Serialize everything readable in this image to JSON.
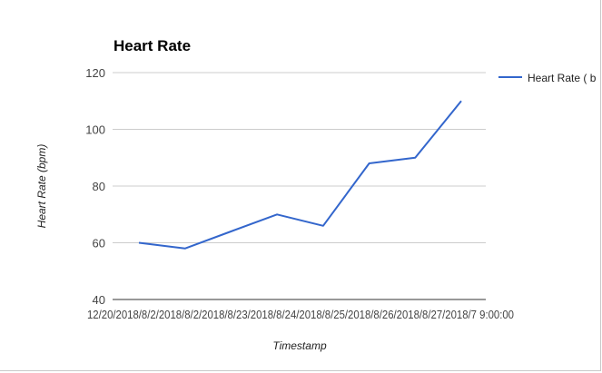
{
  "chart_data": {
    "type": "line",
    "title": "Heart Rate",
    "xlabel": "Timestamp",
    "ylabel": "Heart Rate (bpm)",
    "ylim": [
      40,
      120
    ],
    "yticks": [
      40,
      60,
      80,
      100,
      120
    ],
    "x_tick_text": "12/20/2018/8/2/2018/8/2/2018/8/23/2018/8/24/2018/8/25/2018/8/26/2018/8/27/2018/7 9:00:00",
    "x": [
      "1",
      "2",
      "3",
      "4",
      "5",
      "6",
      "7",
      "8"
    ],
    "series": [
      {
        "name": "Heart Rate ( b",
        "values": [
          60,
          58,
          64,
          70,
          66,
          88,
          90,
          110
        ],
        "color": "#3366cc"
      }
    ],
    "grid": true,
    "legend": "right"
  }
}
